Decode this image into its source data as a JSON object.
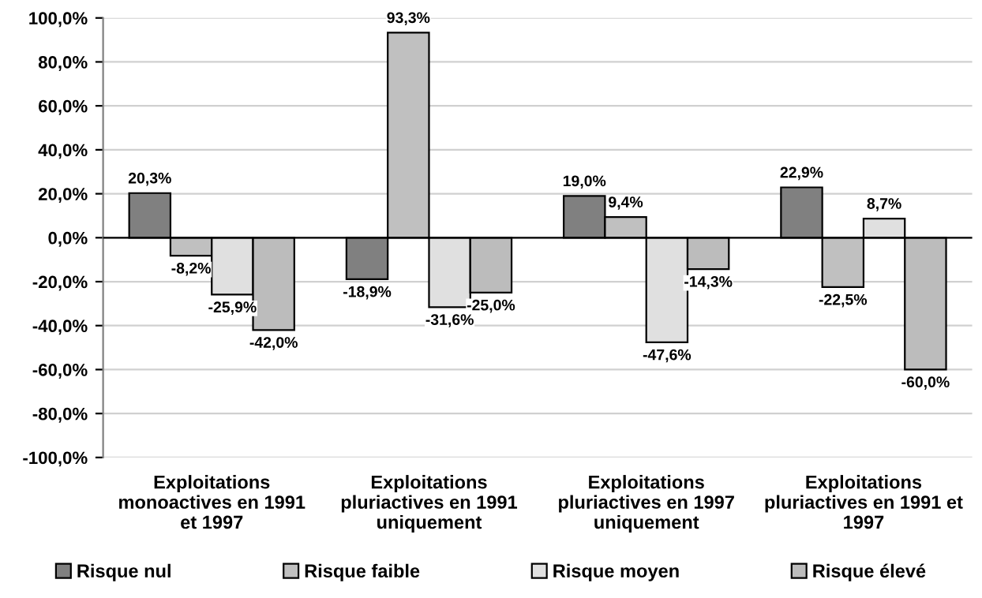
{
  "chart_data": {
    "type": "bar",
    "categories": [
      "Exploitations\nmonoactives en 1991\net 1997",
      "Exploitations\npluriactives en 1991\nuniquement",
      "Exploitations\npluriactives en 1997\nuniquement",
      "Exploitations\npluriactives en 1991 et\n1997"
    ],
    "series": [
      {
        "name": "Risque nul",
        "color": "#808080",
        "values": [
          20.3,
          -18.9,
          19.0,
          22.9
        ],
        "value_labels": [
          "20,3%",
          "-18,9%",
          "19,0%",
          "22,9%"
        ]
      },
      {
        "name": "Risque faible",
        "color": "#c0c0c0",
        "values": [
          -8.2,
          93.3,
          9.4,
          -22.5
        ],
        "value_labels": [
          "-8,2%",
          "93,3%",
          "9,4%",
          "-22,5%"
        ]
      },
      {
        "name": "Risque moyen",
        "color": "#e0e0e0",
        "values": [
          -25.9,
          -31.6,
          -47.6,
          8.7
        ],
        "value_labels": [
          "-25,9%",
          "-31,6%",
          "-47,6%",
          "8,7%"
        ]
      },
      {
        "name": "Risque élevé",
        "color": "#bcbcbc",
        "values": [
          -42.0,
          -25.0,
          -14.3,
          -60.0
        ],
        "value_labels": [
          "-42,0%",
          "-25,0%",
          "-14,3%",
          "-60,0%"
        ]
      }
    ],
    "ylim": [
      -100,
      100
    ],
    "yticks": [
      {
        "value": -100,
        "label": "-100,0%"
      },
      {
        "value": -80,
        "label": "-80,0%"
      },
      {
        "value": -60,
        "label": "-60,0%"
      },
      {
        "value": -40,
        "label": "-40,0%"
      },
      {
        "value": -20,
        "label": "-20,0%"
      },
      {
        "value": 0,
        "label": "0,0%"
      },
      {
        "value": 20,
        "label": "20,0%"
      },
      {
        "value": 40,
        "label": "40,0%"
      },
      {
        "value": 60,
        "label": "60,0%"
      },
      {
        "value": 80,
        "label": "80,0%"
      },
      {
        "value": 100,
        "label": "100,0%"
      }
    ],
    "grid": "y",
    "legend": "bottom"
  }
}
